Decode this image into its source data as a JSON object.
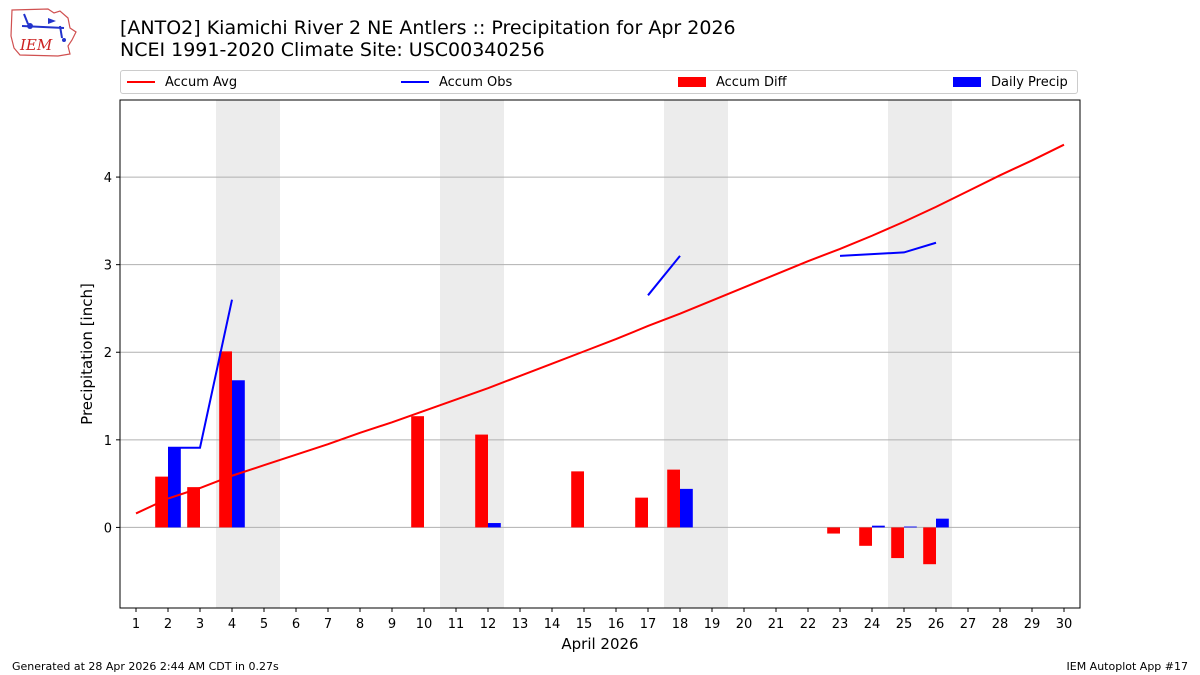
{
  "header": {
    "logo_text": "IEM",
    "title_line1": "[ANTO2] Kiamichi River 2 NE Antlers :: Precipitation for Apr 2026",
    "title_line2": "NCEI 1991-2020 Climate Site: USC00340256"
  },
  "legend": {
    "accum_avg": "Accum Avg",
    "accum_obs": "Accum Obs",
    "accum_diff": "Accum Diff",
    "daily_precip": "Daily Precip"
  },
  "colors": {
    "avg": "#ff0000",
    "obs": "#0000ff",
    "diff": "#ff0000",
    "daily": "#0000ff",
    "weekend_shade": "#ececec",
    "grid": "#b0b0b0"
  },
  "chart_data": {
    "type": "bar+line",
    "xlabel": "April 2026",
    "ylabel": "Precipitation [inch]",
    "xlim": [
      0.5,
      30.5
    ],
    "ylim": [
      -0.92,
      4.88
    ],
    "yticks": [
      0,
      1,
      2,
      3,
      4
    ],
    "days": [
      1,
      2,
      3,
      4,
      5,
      6,
      7,
      8,
      9,
      10,
      11,
      12,
      13,
      14,
      15,
      16,
      17,
      18,
      19,
      20,
      21,
      22,
      23,
      24,
      25,
      26,
      27,
      28,
      29,
      30
    ],
    "shaded_days": [
      [
        4,
        5
      ],
      [
        11,
        12
      ],
      [
        18,
        19
      ],
      [
        25,
        26
      ]
    ],
    "series": [
      {
        "name": "Accum Avg",
        "kind": "line",
        "x": [
          1,
          2,
          3,
          4,
          5,
          6,
          7,
          8,
          9,
          10,
          11,
          12,
          13,
          14,
          15,
          16,
          17,
          18,
          19,
          20,
          21,
          22,
          23,
          24,
          25,
          26,
          27,
          28,
          29,
          30
        ],
        "values": [
          0.16,
          0.33,
          0.45,
          0.59,
          0.71,
          0.83,
          0.95,
          1.08,
          1.2,
          1.33,
          1.46,
          1.59,
          1.73,
          1.87,
          2.01,
          2.15,
          2.3,
          2.44,
          2.59,
          2.74,
          2.89,
          3.04,
          3.18,
          3.33,
          3.49,
          3.66,
          3.84,
          4.02,
          4.19,
          4.37
        ]
      },
      {
        "name": "Accum Obs",
        "kind": "line",
        "segments": [
          {
            "x": [
              2,
              3,
              4
            ],
            "values": [
              0.91,
              0.91,
              2.6
            ]
          },
          {
            "x": [
              17,
              18
            ],
            "values": [
              2.65,
              3.1
            ]
          },
          {
            "x": [
              23,
              24,
              25,
              26
            ],
            "values": [
              3.1,
              3.12,
              3.14,
              3.25
            ]
          }
        ]
      },
      {
        "name": "Accum Diff",
        "kind": "bar",
        "x": [
          2,
          3,
          4,
          10,
          12,
          15,
          17,
          18,
          23,
          24,
          25,
          26
        ],
        "values": [
          0.58,
          0.46,
          2.01,
          1.27,
          1.06,
          0.64,
          0.34,
          0.66,
          -0.07,
          -0.21,
          -0.35,
          -0.42
        ]
      },
      {
        "name": "Daily Precip",
        "kind": "bar",
        "x": [
          2,
          4,
          12,
          18,
          24,
          25,
          26
        ],
        "values": [
          0.91,
          1.68,
          0.05,
          0.44,
          0.02,
          0.01,
          0.1
        ]
      }
    ]
  },
  "footer": {
    "left": "Generated at 28 Apr 2026 2:44 AM CDT in 0.27s",
    "right": "IEM Autoplot App #17"
  }
}
